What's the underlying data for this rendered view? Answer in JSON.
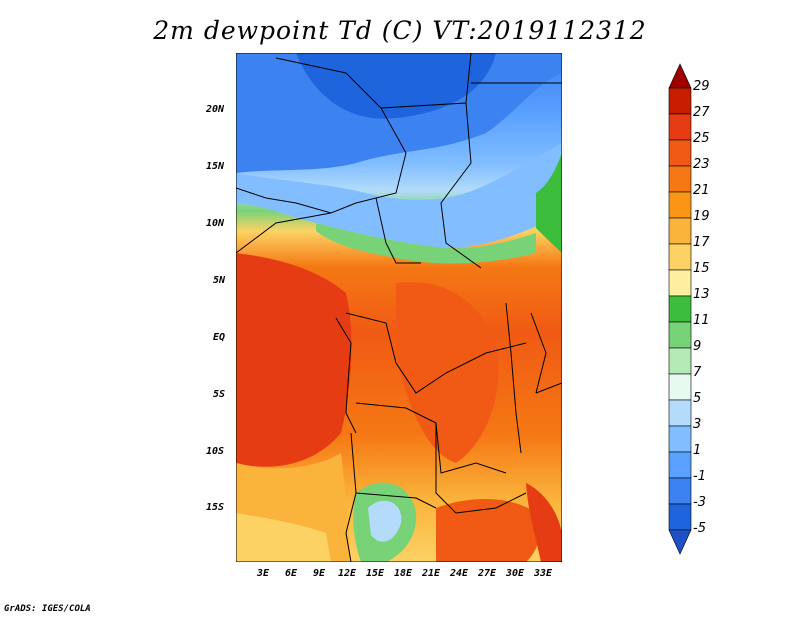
{
  "title": "2m dewpoint Td (C) VT:2019112312",
  "credit": "GrADS: IGES/COLA",
  "map": {
    "lat_range": [
      -19,
      25
    ],
    "lon_range": [
      0,
      35
    ],
    "lat_labels": [
      "20N",
      "15N",
      "10N",
      "5N",
      "EQ",
      "5S",
      "10S",
      "15S"
    ],
    "lon_labels": [
      "3E",
      "6E",
      "9E",
      "12E",
      "15E",
      "18E",
      "21E",
      "24E",
      "27E",
      "30E",
      "33E"
    ]
  },
  "colorbar": {
    "labels": [
      "29",
      "27",
      "25",
      "23",
      "21",
      "19",
      "17",
      "15",
      "13",
      "11",
      "9",
      "7",
      "5",
      "3",
      "1",
      "-1",
      "-3",
      "-5"
    ],
    "colors": [
      "#a00000",
      "#c81e00",
      "#e63c14",
      "#f05a14",
      "#f57814",
      "#fa9614",
      "#fab43c",
      "#fcd264",
      "#fcf0a0",
      "#3cbe3c",
      "#78d278",
      "#b4ebb4",
      "#e6faf0",
      "#b4dcfa",
      "#82beff",
      "#5aa0ff",
      "#3c82f0",
      "#1e64dc",
      "#1e50c8"
    ]
  }
}
